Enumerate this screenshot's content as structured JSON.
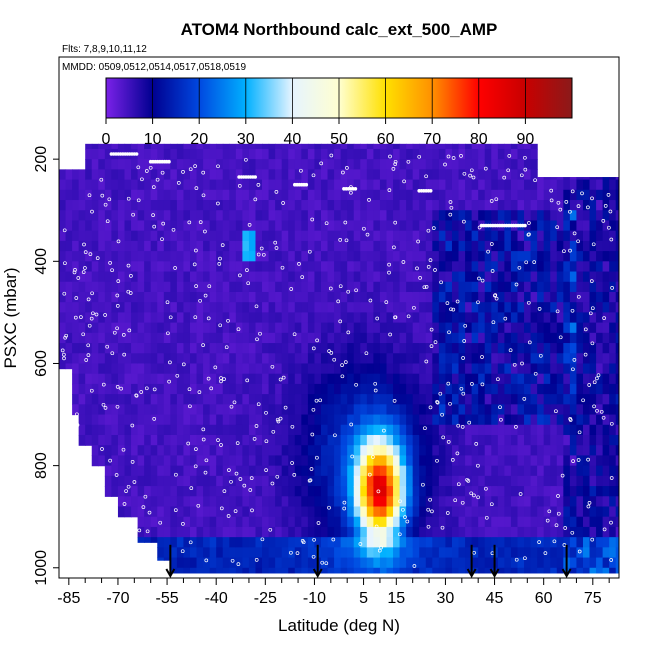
{
  "chart_data": {
    "type": "heatmap",
    "title": "ATOM4 Northbound calc_ext_500_AMP",
    "subtitle_flights": "Flts: 7,8,9,10,11,12",
    "subtitle_dates": "MMDD: 0509,0512,0514,0517,0518,0519",
    "xlabel": "Latitude (deg N)",
    "ylabel": "PSXC (mbar)",
    "xlim": [
      -88,
      83
    ],
    "ylim": [
      1020,
      0
    ],
    "x_ticks": [
      -85,
      -70,
      -55,
      -40,
      -25,
      -10,
      5,
      15,
      30,
      45,
      60,
      75
    ],
    "x_tick_labels": [
      "-85",
      "-70",
      "-55",
      "-40",
      "-25",
      "-10",
      "5",
      "15",
      "30",
      "45",
      "60",
      "75"
    ],
    "y_ticks": [
      200,
      400,
      600,
      800,
      1000
    ],
    "y_tick_labels": [
      "200",
      "400",
      "600",
      "800",
      "1000"
    ],
    "colorbar": {
      "range": [
        0,
        100
      ],
      "ticks": [
        0,
        10,
        20,
        30,
        40,
        50,
        60,
        70,
        80,
        90
      ],
      "tick_labels": [
        "0",
        "10",
        "20",
        "30",
        "40",
        "50",
        "60",
        "70",
        "80",
        "90"
      ],
      "stops": [
        "#7b22e8",
        "#000090",
        "#0048e0",
        "#00b0ff",
        "#e6f4ff",
        "#ffffd0",
        "#ffe000",
        "#ff9000",
        "#ff0000",
        "#c80000",
        "#8b1a1a"
      ]
    },
    "arrow_latitudes": [
      -54,
      -9,
      38,
      45,
      67
    ],
    "hotspot": {
      "lat_center": 10,
      "p_center": 850,
      "peak_value": 72
    },
    "background_value": 3
  }
}
